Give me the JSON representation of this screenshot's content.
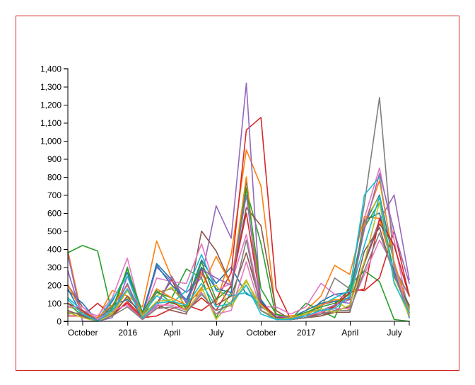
{
  "chart_data": {
    "type": "line",
    "title": "",
    "xlabel": "",
    "ylabel": "",
    "ylim": [
      0,
      1400
    ],
    "xlim": [
      "2015-09-01",
      "2017-08-01"
    ],
    "y_ticks": [
      0,
      100,
      200,
      300,
      400,
      500,
      600,
      700,
      800,
      900,
      1000,
      1100,
      1200,
      1300,
      1400
    ],
    "y_tick_labels": [
      "0",
      "100",
      "200",
      "300",
      "400",
      "500",
      "600",
      "700",
      "800",
      "900",
      "1,000",
      "1,100",
      "1,200",
      "1,300",
      "1,400"
    ],
    "x_ticks": [
      {
        "date": "2015-10-01",
        "label": "October"
      },
      {
        "date": "2016-01-01",
        "label": "2016"
      },
      {
        "date": "2016-04-01",
        "label": "April"
      },
      {
        "date": "2016-07-01",
        "label": "July"
      },
      {
        "date": "2016-10-01",
        "label": "October"
      },
      {
        "date": "2017-01-01",
        "label": "2017"
      },
      {
        "date": "2017-04-01",
        "label": "April"
      },
      {
        "date": "2017-07-01",
        "label": "July"
      }
    ],
    "grid": false,
    "x": [
      "2015-09",
      "2015-10",
      "2015-11",
      "2015-12",
      "2016-01",
      "2016-02",
      "2016-03",
      "2016-04",
      "2016-05",
      "2016-06",
      "2016-07",
      "2016-08",
      "2016-09",
      "2016-10",
      "2016-11",
      "2016-12",
      "2017-01",
      "2017-02",
      "2017-03",
      "2017-04",
      "2017-05",
      "2017-06",
      "2017-07",
      "2017-08"
    ],
    "series": [
      {
        "color": "#1f77b4",
        "values": [
          180,
          30,
          10,
          110,
          270,
          30,
          320,
          230,
          100,
          340,
          210,
          300,
          150,
          120,
          10,
          20,
          30,
          110,
          150,
          160,
          540,
          700,
          320,
          70
        ]
      },
      {
        "color": "#ff7f0e",
        "values": [
          390,
          20,
          20,
          170,
          140,
          80,
          445,
          240,
          60,
          270,
          100,
          370,
          950,
          750,
          40,
          20,
          60,
          140,
          310,
          260,
          580,
          570,
          270,
          150
        ]
      },
      {
        "color": "#2ca02c",
        "values": [
          380,
          420,
          390,
          40,
          300,
          20,
          160,
          130,
          290,
          240,
          20,
          160,
          730,
          430,
          20,
          10,
          100,
          60,
          20,
          200,
          280,
          220,
          10,
          0
        ]
      },
      {
        "color": "#d62728",
        "values": [
          30,
          30,
          100,
          30,
          110,
          20,
          30,
          70,
          90,
          60,
          120,
          270,
          1060,
          1130,
          180,
          10,
          20,
          40,
          90,
          180,
          170,
          240,
          500,
          140
        ]
      },
      {
        "color": "#9467bd",
        "values": [
          370,
          0,
          0,
          20,
          250,
          30,
          300,
          220,
          160,
          240,
          640,
          460,
          1320,
          60,
          20,
          10,
          30,
          90,
          110,
          100,
          330,
          560,
          700,
          230
        ]
      },
      {
        "color": "#8c564b",
        "values": [
          200,
          80,
          10,
          40,
          180,
          40,
          100,
          230,
          60,
          500,
          390,
          200,
          630,
          530,
          60,
          10,
          20,
          30,
          50,
          50,
          320,
          540,
          420,
          140
        ]
      },
      {
        "color": "#e377c2",
        "values": [
          200,
          60,
          30,
          130,
          350,
          20,
          240,
          220,
          210,
          430,
          170,
          210,
          480,
          80,
          80,
          40,
          80,
          210,
          150,
          120,
          570,
          850,
          450,
          30
        ]
      },
      {
        "color": "#7f7f7f",
        "values": [
          50,
          40,
          10,
          80,
          200,
          30,
          160,
          180,
          110,
          160,
          40,
          110,
          200,
          60,
          10,
          10,
          20,
          70,
          240,
          180,
          650,
          1240,
          300,
          140
        ]
      },
      {
        "color": "#bcbd22",
        "values": [
          80,
          60,
          0,
          50,
          130,
          40,
          140,
          190,
          80,
          190,
          10,
          110,
          230,
          60,
          20,
          20,
          40,
          100,
          120,
          60,
          560,
          690,
          250,
          50
        ]
      },
      {
        "color": "#17becf",
        "values": [
          130,
          60,
          10,
          120,
          250,
          40,
          140,
          100,
          170,
          370,
          170,
          140,
          160,
          90,
          10,
          10,
          40,
          90,
          130,
          170,
          700,
          800,
          310,
          80
        ]
      },
      {
        "color": "#1f77b4",
        "values": [
          170,
          100,
          0,
          90,
          120,
          50,
          310,
          200,
          120,
          300,
          180,
          160,
          780,
          110,
          20,
          20,
          60,
          100,
          110,
          130,
          560,
          600,
          280,
          20
        ]
      },
      {
        "color": "#ff7f0e",
        "values": [
          200,
          50,
          20,
          90,
          200,
          40,
          180,
          130,
          90,
          180,
          360,
          200,
          800,
          90,
          30,
          30,
          40,
          90,
          120,
          120,
          540,
          780,
          330,
          60
        ]
      },
      {
        "color": "#2ca02c",
        "values": [
          100,
          30,
          0,
          70,
          290,
          50,
          170,
          100,
          80,
          330,
          120,
          190,
          740,
          180,
          40,
          20,
          50,
          80,
          100,
          150,
          520,
          660,
          250,
          80
        ]
      },
      {
        "color": "#d62728",
        "values": [
          100,
          60,
          0,
          40,
          100,
          10,
          70,
          110,
          60,
          130,
          60,
          200,
          600,
          100,
          30,
          10,
          20,
          50,
          80,
          160,
          180,
          570,
          420,
          140
        ]
      },
      {
        "color": "#9467bd",
        "values": [
          280,
          20,
          10,
          40,
          210,
          20,
          80,
          250,
          100,
          290,
          240,
          200,
          700,
          80,
          30,
          20,
          30,
          60,
          90,
          120,
          510,
          820,
          500,
          210
        ]
      },
      {
        "color": "#8c564b",
        "values": [
          60,
          30,
          0,
          30,
          140,
          20,
          90,
          60,
          40,
          290,
          90,
          140,
          380,
          90,
          20,
          10,
          20,
          30,
          60,
          80,
          390,
          520,
          250,
          90
        ]
      },
      {
        "color": "#e377c2",
        "values": [
          80,
          80,
          10,
          60,
          90,
          10,
          90,
          90,
          60,
          160,
          40,
          60,
          330,
          60,
          10,
          10,
          30,
          50,
          70,
          70,
          260,
          450,
          300,
          40
        ]
      },
      {
        "color": "#7f7f7f",
        "values": [
          40,
          50,
          0,
          30,
          80,
          10,
          70,
          80,
          50,
          150,
          60,
          90,
          450,
          60,
          10,
          10,
          20,
          40,
          60,
          60,
          280,
          490,
          260,
          40
        ]
      },
      {
        "color": "#bcbd22",
        "values": [
          50,
          20,
          0,
          40,
          170,
          30,
          110,
          120,
          60,
          170,
          200,
          80,
          220,
          90,
          10,
          20,
          40,
          70,
          50,
          90,
          330,
          660,
          220,
          30
        ]
      },
      {
        "color": "#17becf",
        "values": [
          120,
          40,
          0,
          60,
          180,
          20,
          100,
          110,
          90,
          210,
          80,
          100,
          200,
          40,
          10,
          10,
          30,
          60,
          70,
          140,
          420,
          690,
          210,
          50
        ]
      }
    ]
  }
}
